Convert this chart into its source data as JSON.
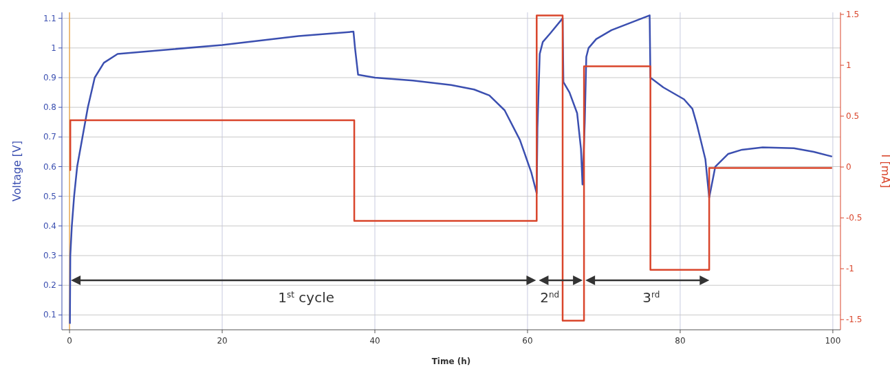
{
  "chart_data": {
    "type": "line",
    "xlabel": "Time (h)",
    "ylabel": "Voltage [V]",
    "y2label": "I [mA]",
    "xlim": [
      -1,
      101
    ],
    "xticks": [
      0,
      20,
      40,
      60,
      80,
      100
    ],
    "ylim": [
      0.05,
      1.12
    ],
    "yticks": [
      0.1,
      0.2,
      0.3,
      0.4,
      0.5,
      0.6,
      0.7,
      0.8,
      0.9,
      {
        "value": 1,
        "label": "1"
      },
      1.1
    ],
    "y2lim": [
      -1.6,
      1.52
    ],
    "y2ticks": [
      -1.5,
      -1,
      -0.5,
      0,
      0.5,
      1,
      1.5
    ],
    "grid": true,
    "series": [
      {
        "color": "#3b4fb0",
        "x": [
          0.05,
          0.1,
          0.3,
          0.6,
          1.0,
          1.7,
          2.4,
          3.3,
          4.5,
          6.3,
          20,
          30,
          37.2,
          37.4,
          37.8,
          40,
          45,
          50,
          53,
          55,
          57,
          59,
          60.5,
          61.2,
          61.3,
          61.6,
          62,
          63,
          64.6,
          64.7,
          65.5,
          66.5,
          67.0,
          67.2,
          67.5,
          67.7,
          68,
          69,
          71,
          73.5,
          76.0,
          76.1,
          77.8,
          80.5,
          81.6,
          82.2,
          83.3,
          83.8,
          84.6,
          86.3,
          88.1,
          90.8,
          94.9,
          97.5,
          99.9
        ],
        "values": [
          0.07,
          0.3,
          0.4,
          0.5,
          0.6,
          0.7,
          0.8,
          0.9,
          0.95,
          0.98,
          1.01,
          1.04,
          1.055,
          1.0,
          0.91,
          0.9,
          0.89,
          0.875,
          0.86,
          0.84,
          0.79,
          0.69,
          0.58,
          0.51,
          0.73,
          0.98,
          1.02,
          1.05,
          1.1,
          0.885,
          0.85,
          0.78,
          0.66,
          0.54,
          0.75,
          0.97,
          1.0,
          1.03,
          1.06,
          1.085,
          1.11,
          0.9,
          0.867,
          0.827,
          0.795,
          0.741,
          0.625,
          0.495,
          0.6,
          0.643,
          0.657,
          0.665,
          0.662,
          0.65,
          0.634
        ]
      },
      {
        "type": "step",
        "axis": "y2",
        "color": "#d9452b",
        "x": [
          0,
          0.1,
          37.3,
          61.2,
          64.6,
          67.4,
          76.1,
          83.8,
          99.9
        ],
        "values": [
          -0.03,
          0.46,
          -0.53,
          1.49,
          -1.51,
          0.99,
          -1.01,
          -0.01,
          -0.01
        ]
      }
    ],
    "ref_lines": [
      {
        "axis": "x",
        "value": 0,
        "color": "#f0a030"
      }
    ],
    "annotations": [
      "1$^{st}$ cycle",
      "2$^{nd}$",
      "3$^{rd}$"
    ]
  }
}
